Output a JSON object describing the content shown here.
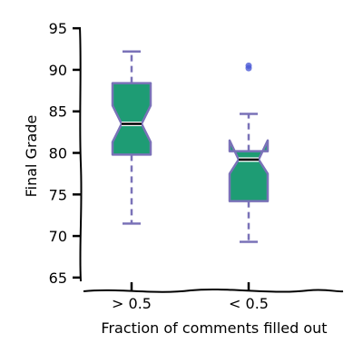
{
  "chart_data": {
    "type": "boxplot",
    "notched": true,
    "title": "",
    "xlabel": "Fraction of comments filled out",
    "ylabel": "Final Grade",
    "ylim": [
      64,
      96
    ],
    "yticks": [
      65,
      70,
      75,
      80,
      85,
      90,
      95
    ],
    "categories": [
      "> 0.5",
      "< 0.5"
    ],
    "boxes": [
      {
        "label": "> 0.5",
        "whisker_low": 71.5,
        "q1": 79.8,
        "median": 83.5,
        "q3": 88.4,
        "whisker_high": 92.2,
        "notch_low": 81.3,
        "notch_high": 85.7,
        "outliers": []
      },
      {
        "label": "< 0.5",
        "whisker_low": 69.3,
        "q1": 74.2,
        "median": 79.2,
        "q3": 80.2,
        "whisker_high": 84.7,
        "notch_low": 77.5,
        "notch_high": 81.5,
        "outliers": [
          90.2,
          90.5
        ]
      }
    ],
    "colors": {
      "box_fill": "#1e9c74",
      "box_edge": "#7a72b8",
      "median": "#000000",
      "outlier": "#4b5ad6"
    },
    "grid": false,
    "legend": "none"
  }
}
